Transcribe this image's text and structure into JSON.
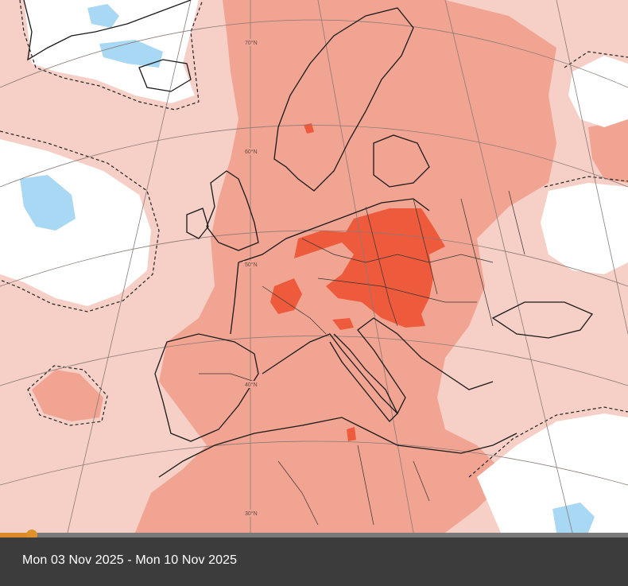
{
  "map": {
    "latitude_labels": [
      "70°N",
      "60°N",
      "50°N",
      "40°N",
      "30°N"
    ],
    "colors": {
      "background_anomaly": "#f6cfc6",
      "moderate_anomaly": "#f2a492",
      "strong_anomaly": "#ee5a3c",
      "no_signal": "#ffffff",
      "cold_anomaly": "#a9d8f5",
      "coastline": "#1a1a1a"
    }
  },
  "timeline": {
    "date_range": "Mon 03 Nov 2025 - Mon 10 Nov 2025",
    "progress": 0.05,
    "colors": {
      "track": "#7a7a7a",
      "fill": "#d98a2b",
      "thumb": "#e0902a",
      "caption_bg": "#3c3c3c"
    }
  }
}
